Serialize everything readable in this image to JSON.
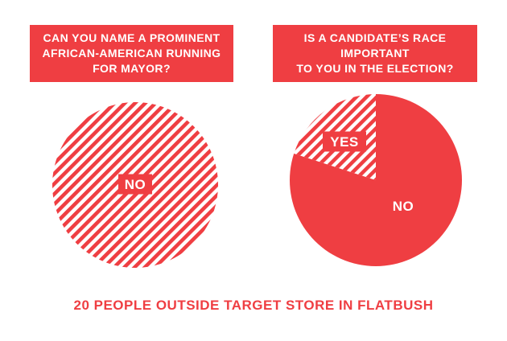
{
  "chart_data": [
    {
      "type": "pie",
      "title": "CAN YOU NAME A PROMINENT\nAFRICAN-AMERICAN RUNNING\nFOR MAYOR?",
      "slices": [
        {
          "label": "NO",
          "value": 100,
          "fill": "hatched"
        }
      ]
    },
    {
      "type": "pie",
      "title": "IS A CANDIDATE’S RACE\nIMPORTANT\nTO YOU IN THE ELECTION?",
      "slices": [
        {
          "label": "NO",
          "value": 80,
          "fill": "solid"
        },
        {
          "label": "YES",
          "value": 20,
          "fill": "hatched"
        }
      ]
    }
  ],
  "footer": "20 PEOPLE OUTSIDE TARGET STORE IN FLATBUSH",
  "colors": {
    "accent": "#ef3e42",
    "background": "#ffffff"
  }
}
